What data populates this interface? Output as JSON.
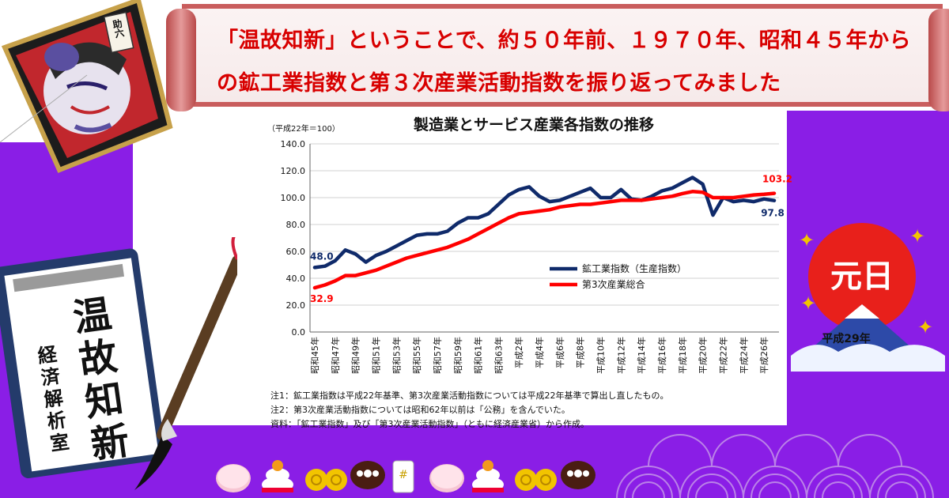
{
  "headline": {
    "line1": "「温故知新」ということで、約５０年前、１９７０年、昭和４５年から",
    "line2": "の鉱工業指数と第３次産業活動指数を振り返ってみました"
  },
  "illustrations": {
    "kite_sign": "助六",
    "book_title": "温故知新",
    "book_author": "経済解析室",
    "sun_label": "元日",
    "sun_year": "平成29年"
  },
  "colors": {
    "series1": "#0f2a6a",
    "series2": "#ff0000",
    "headline": "#d80000",
    "purple": "#8a1ee6"
  },
  "chart_data": {
    "type": "line",
    "title": "製造業とサービス産業各指数の推移",
    "unit_note": "（平成22年＝100）",
    "ylim": [
      0,
      140
    ],
    "yticks": [
      "0.0",
      "20.0",
      "40.0",
      "60.0",
      "80.0",
      "100.0",
      "120.0",
      "140.0"
    ],
    "x_tick_labels": [
      "昭和45年",
      "昭和47年",
      "昭和49年",
      "昭和51年",
      "昭和53年",
      "昭和55年",
      "昭和57年",
      "昭和59年",
      "昭和61年",
      "昭和63年",
      "平成2年",
      "平成4年",
      "平成6年",
      "平成8年",
      "平成10年",
      "平成12年",
      "平成14年",
      "平成16年",
      "平成18年",
      "平成20年",
      "平成22年",
      "平成24年",
      "平成26年"
    ],
    "legend_position": "center-right",
    "series": [
      {
        "name": "鉱工業指数（生産指数）",
        "color": "#0f2a6a",
        "values": [
          48.0,
          49.0,
          53.0,
          61.0,
          58.0,
          52.0,
          57.0,
          60.0,
          64.0,
          68.0,
          72.0,
          73.0,
          73.0,
          75.0,
          81.0,
          85.0,
          85.0,
          88.0,
          95.0,
          102.0,
          106.0,
          108.0,
          101.0,
          97.0,
          98.0,
          101.0,
          104.0,
          107.0,
          100.0,
          100.0,
          106.0,
          99.0,
          98.0,
          101.0,
          105.0,
          107.0,
          111.0,
          115.0,
          110.0,
          87.0,
          100.0,
          97.0,
          98.0,
          97.0,
          99.0,
          97.8
        ],
        "start_label": "48.0",
        "end_label": "97.8"
      },
      {
        "name": "第3次産業総合",
        "color": "#ff0000",
        "values": [
          32.9,
          35.0,
          38.0,
          42.0,
          42.0,
          44.0,
          46.0,
          49.0,
          52.0,
          55.0,
          57.0,
          59.0,
          61.0,
          63.0,
          66.0,
          69.0,
          73.0,
          77.0,
          81.0,
          85.0,
          88.0,
          89.0,
          90.0,
          91.0,
          93.0,
          94.0,
          95.0,
          95.0,
          96.0,
          97.0,
          98.0,
          98.0,
          98.0,
          99.0,
          100.0,
          101.0,
          103.0,
          104.5,
          104.0,
          100.0,
          100.0,
          100.0,
          101.0,
          102.0,
          102.5,
          103.2
        ],
        "start_label": "32.9",
        "end_label": "103.2"
      }
    ],
    "notes": [
      "注1：鉱工業指数は平成22年基準、第3次産業活動指数については平成22年基準で算出し直したもの。",
      "注2：第3次産業活動指数については昭和62年以前は「公務」を含んでいた。",
      "資料：「鉱工業指数」及び「第3次産業活動指数」（ともに経済産業省）から作成。"
    ]
  }
}
